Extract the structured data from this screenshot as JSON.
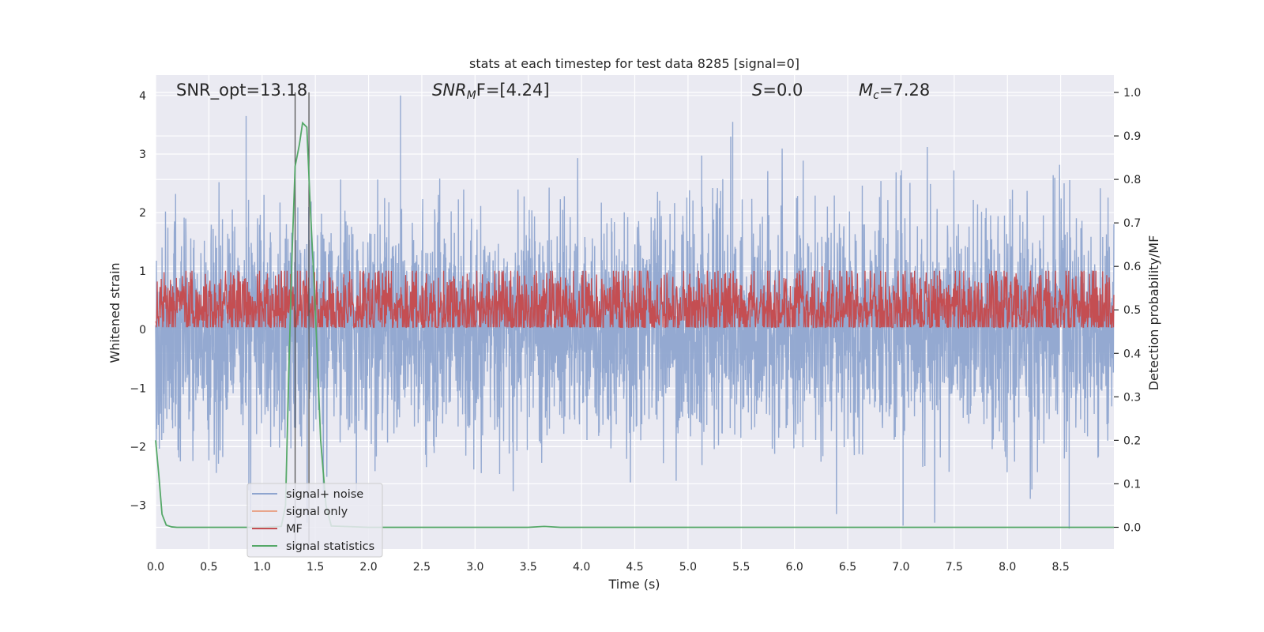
{
  "chart_data": {
    "type": "line",
    "title": "stats at each timestep for test data 8285 [signal=0]",
    "xlabel": "Time (s)",
    "ylabel": "Whitened strain",
    "y2label": "Detection probability/MF",
    "xlim": [
      0,
      9
    ],
    "ylim": [
      -3.75,
      4.35
    ],
    "y2lim": [
      -0.05,
      1.04
    ],
    "xticks": [
      0.0,
      0.5,
      1.0,
      1.5,
      2.0,
      2.5,
      3.0,
      3.5,
      4.0,
      4.5,
      5.0,
      5.5,
      6.0,
      6.5,
      7.0,
      7.5,
      8.0,
      8.5
    ],
    "yticks": [
      -3,
      -2,
      -1,
      0,
      1,
      2,
      3,
      4
    ],
    "y2ticks": [
      0.0,
      0.1,
      0.2,
      0.3,
      0.4,
      0.5,
      0.6,
      0.7,
      0.8,
      0.9,
      1.0
    ],
    "grid": true,
    "legend_position": "lower-left",
    "annotations": [
      {
        "text": "SNR_opt=13.18",
        "x": 0.2
      },
      {
        "base": "SNR",
        "sub": "M",
        "rest": "F=[4.24]",
        "x": 2.6
      },
      {
        "base": "S",
        "rest": "=0.0",
        "x": 5.6
      },
      {
        "base": "M",
        "sub": "c",
        "rest": "=7.28",
        "x": 6.6
      }
    ],
    "vlines": [
      1.31,
      1.44
    ],
    "series": [
      {
        "name": "signal+ noise",
        "color": "#8fa5cf",
        "axis": "left",
        "description": "whitened noise ~N(0,1), sampled densely over 0-9 s",
        "peaks": [
          [
            0.85,
            3.65
          ],
          [
            2.3,
            4.0
          ],
          [
            5.42,
            3.55
          ],
          [
            8.58,
            -3.4
          ],
          [
            7.02,
            -3.35
          ]
        ]
      },
      {
        "name": "signal only",
        "color": "#e8a58c",
        "axis": "left",
        "values": []
      },
      {
        "name": "MF",
        "color": "#c44e52",
        "axis": "right",
        "baseline": 0.5,
        "spread": 0.05,
        "peaks": [
          [
            6.26,
            0.6
          ]
        ]
      },
      {
        "name": "signal statistics",
        "color": "#55a868",
        "axis": "right",
        "x": [
          0.0,
          0.03,
          0.06,
          0.1,
          0.15,
          0.2,
          0.3,
          0.5,
          1.0,
          1.18,
          1.22,
          1.25,
          1.28,
          1.31,
          1.35,
          1.38,
          1.42,
          1.45,
          1.5,
          1.55,
          1.6,
          1.65,
          2.0,
          3.0,
          3.5,
          3.65,
          3.8,
          4.5,
          6.0,
          8.0,
          9.0
        ],
        "y": [
          0.2,
          0.12,
          0.03,
          0.005,
          0.001,
          0.0,
          0.0,
          0.0,
          0.0,
          0.002,
          0.05,
          0.35,
          0.62,
          0.83,
          0.88,
          0.93,
          0.92,
          0.75,
          0.5,
          0.2,
          0.05,
          0.003,
          0.0,
          0.0,
          0.0,
          0.002,
          0.0,
          0.0,
          0.0,
          0.0,
          0.0
        ]
      }
    ]
  }
}
